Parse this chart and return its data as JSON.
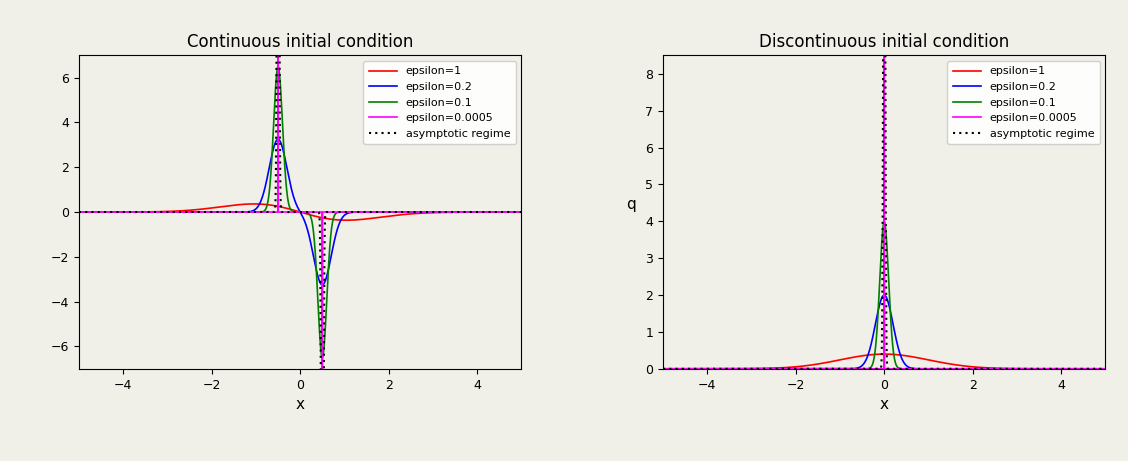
{
  "title_left": "Continuous initial condition",
  "title_right": "Discontinuous initial condition",
  "xlabel": "x",
  "ylabel_left": "",
  "ylabel_right": "q",
  "xlim": [
    -5,
    5
  ],
  "ylim_left": [
    -7,
    7
  ],
  "ylim_right": [
    0,
    8.5
  ],
  "yticks_left": [
    -6,
    -4,
    -2,
    0,
    2,
    4,
    6
  ],
  "yticks_right": [
    0,
    1,
    2,
    3,
    4,
    5,
    6,
    7,
    8
  ],
  "epsilons": [
    1.0,
    0.2,
    0.1,
    0.0005
  ],
  "colors": [
    "#ff0000",
    "#0000ff",
    "#008000",
    "#ff00ff"
  ],
  "asymptotic_color": "#000000",
  "legend_labels": [
    "epsilon=1",
    "epsilon=0.2",
    "epsilon=0.1",
    "epsilon=0.0005",
    "asymptotic regime"
  ],
  "T": 0.01,
  "N": 200,
  "background_color": "#f0efe8",
  "figsize": [
    11.28,
    4.61
  ],
  "dpi": 100,
  "cont_scale": 1.63,
  "disc_scale": 1.0,
  "cont_x0": 0.5,
  "asymp_eps_cont": 0.02,
  "asymp_eps_disc": 0.02
}
